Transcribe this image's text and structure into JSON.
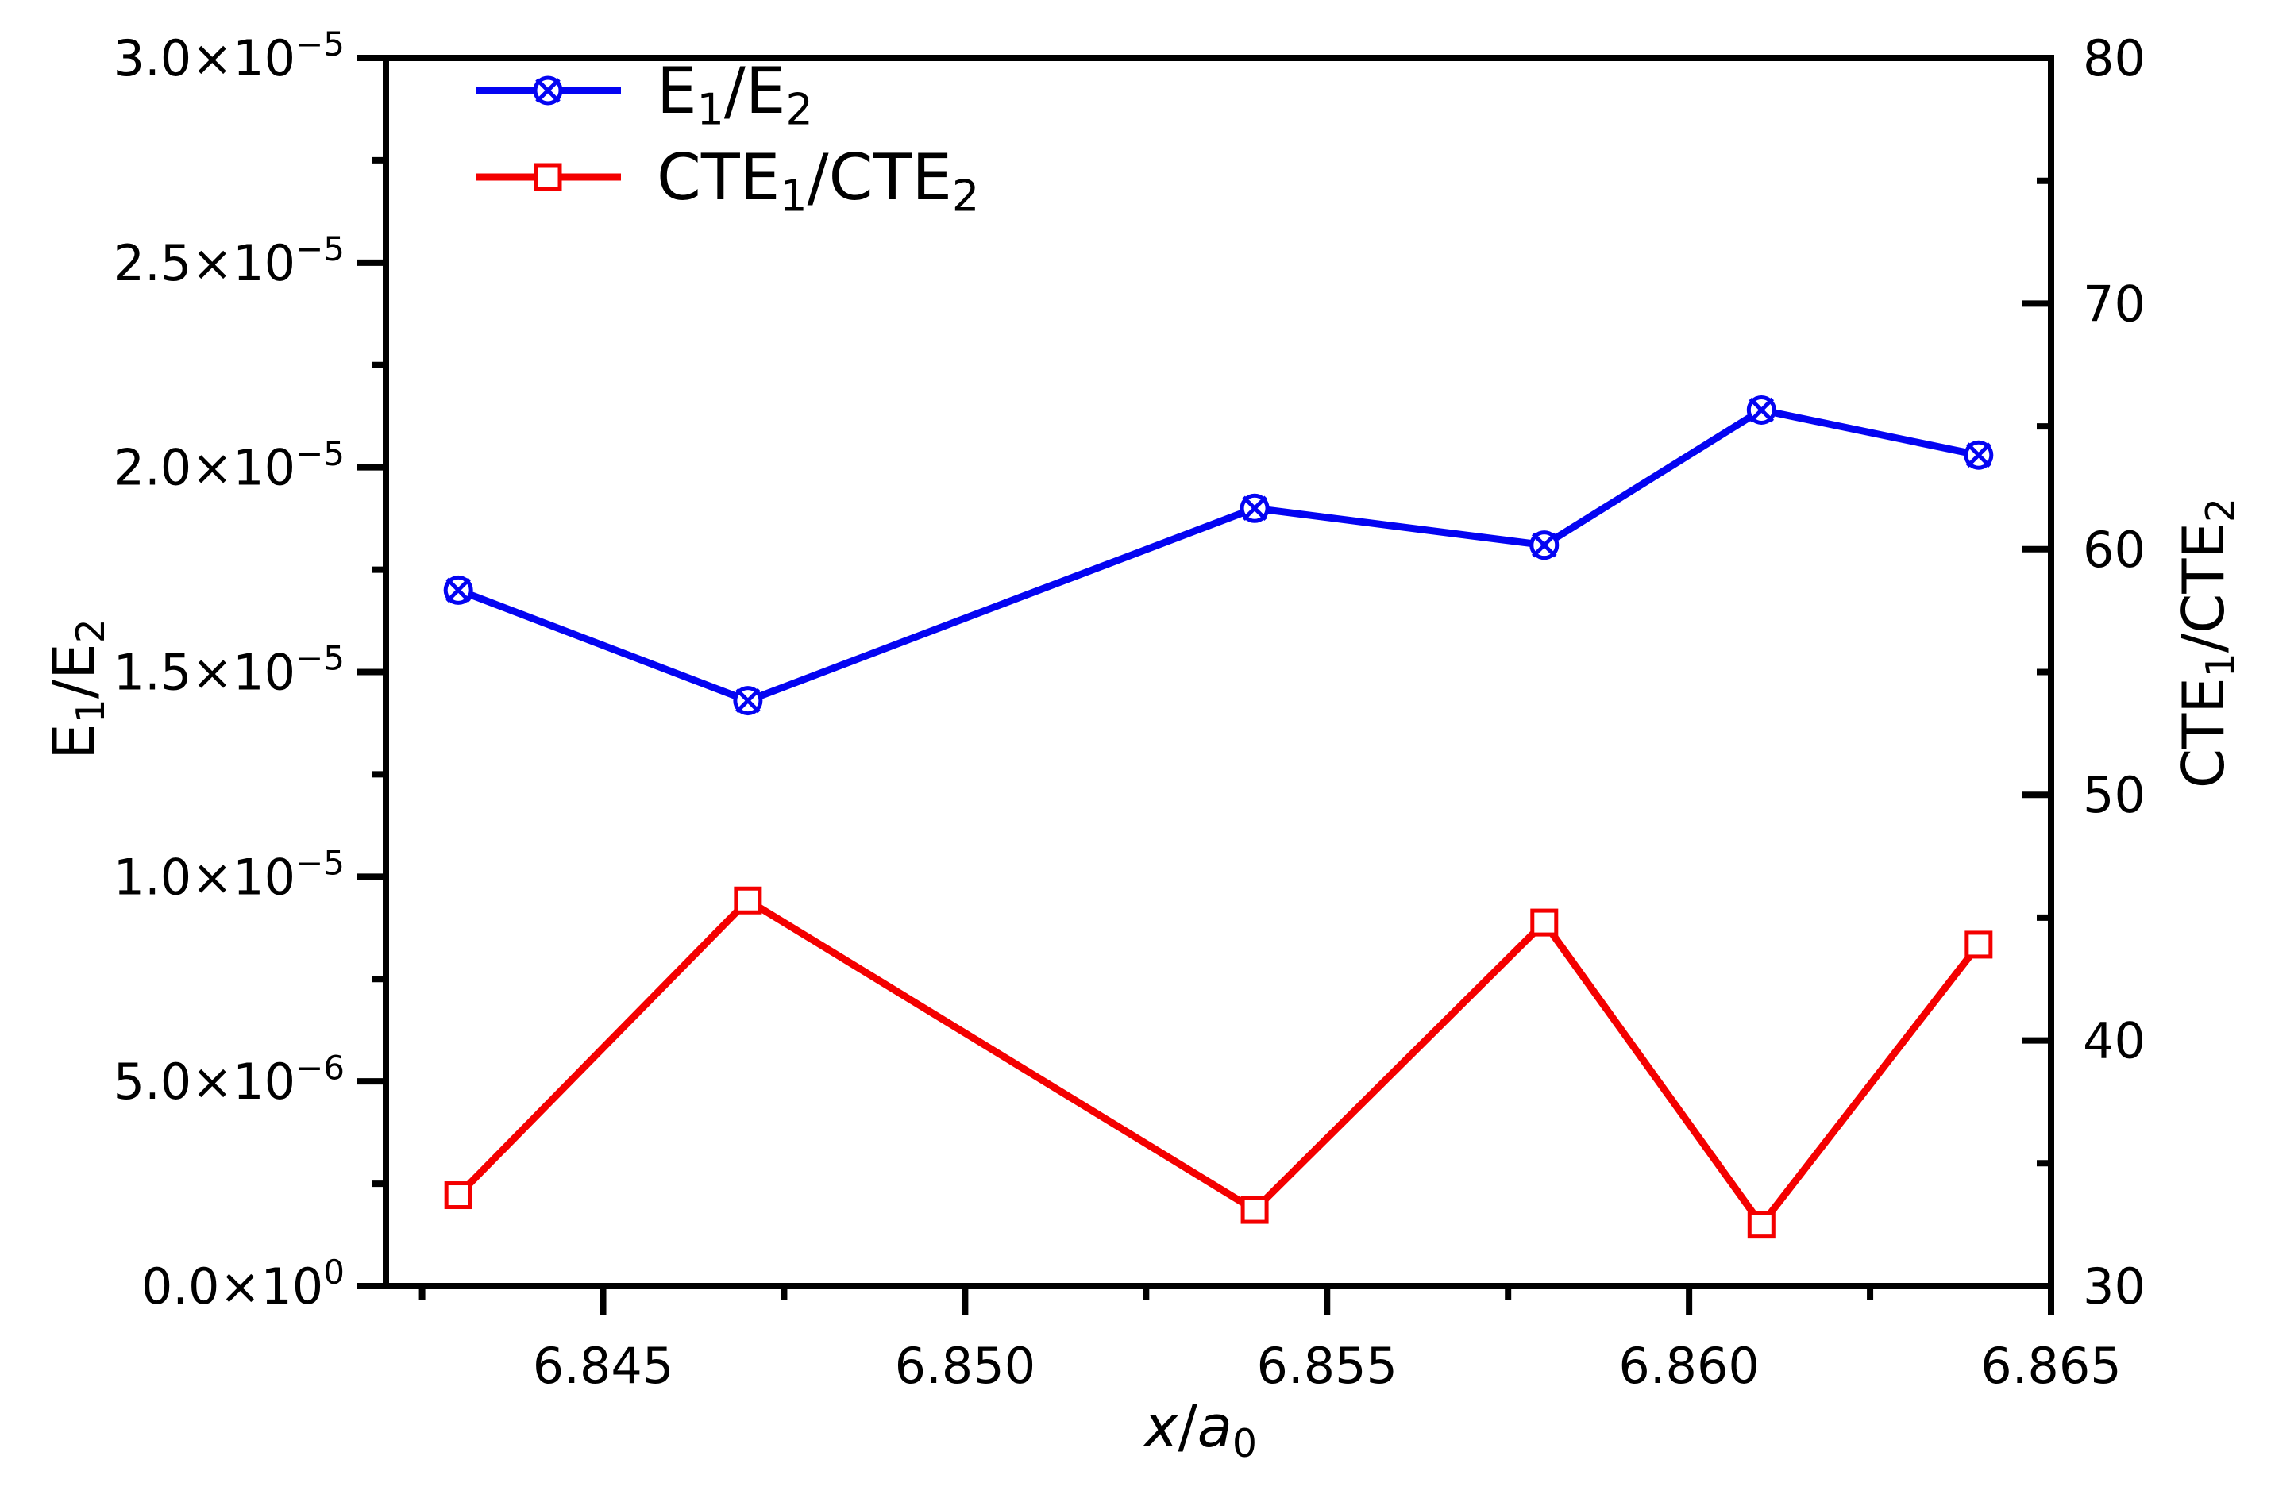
{
  "figure": {
    "background": "#ffffff",
    "axis_color": "#000000"
  },
  "chart_data": {
    "type": "line",
    "title": "",
    "x": [
      6.843,
      6.847,
      6.854,
      6.858,
      6.861,
      6.864
    ],
    "series": [
      {
        "name": "E1/E2",
        "label_rich": [
          {
            "t": "E"
          },
          {
            "t": "1",
            "sub": true
          },
          {
            "t": "/E"
          },
          {
            "t": "2",
            "sub": true
          }
        ],
        "axis": "left",
        "color": "#0404f2",
        "marker": "circle-x",
        "line_width": 9,
        "values": [
          1.7e-05,
          1.43e-05,
          1.9e-05,
          1.81e-05,
          2.14e-05,
          2.03e-05
        ]
      },
      {
        "name": "CTE1/CTE2",
        "label_rich": [
          {
            "t": "CTE"
          },
          {
            "t": "1",
            "sub": true
          },
          {
            "t": "/CTE"
          },
          {
            "t": "2",
            "sub": true
          }
        ],
        "axis": "right",
        "color": "#f40000",
        "marker": "open-square",
        "line_width": 9,
        "values": [
          33.7,
          45.7,
          33.1,
          44.8,
          32.5,
          43.9
        ]
      }
    ],
    "x_axis": {
      "title_rich": [
        {
          "t": "x",
          "italic": true
        },
        {
          "t": "/"
        },
        {
          "t": "a",
          "italic": true
        },
        {
          "t": "0",
          "sub": true
        }
      ],
      "min": 6.842,
      "max": 6.865,
      "major_ticks": [
        6.845,
        6.85,
        6.855,
        6.86,
        6.865
      ],
      "tick_labels": [
        "6.845",
        "6.850",
        "6.855",
        "6.860",
        "6.865"
      ],
      "minor_ticks": [
        6.8425,
        6.8475,
        6.8525,
        6.8575,
        6.8625
      ]
    },
    "y_left": {
      "title_rich": [
        {
          "t": "E"
        },
        {
          "t": "1",
          "sub": true
        },
        {
          "t": "/E"
        },
        {
          "t": "2",
          "sub": true
        }
      ],
      "min": 0,
      "max": 3e-05,
      "major_ticks": [
        {
          "v": 3e-05,
          "base": "3.0×10",
          "exp": "−5"
        },
        {
          "v": 2.5e-05,
          "base": "2.5×10",
          "exp": "−5"
        },
        {
          "v": 2e-05,
          "base": "2.0×10",
          "exp": "−5"
        },
        {
          "v": 1.5e-05,
          "base": "1.5×10",
          "exp": "−5"
        },
        {
          "v": 1e-05,
          "base": "1.0×10",
          "exp": "−5"
        },
        {
          "v": 5e-06,
          "base": "5.0×10",
          "exp": "−6"
        },
        {
          "v": 0.0,
          "base": "0.0×10",
          "exp": "0"
        }
      ],
      "minor_ticks": [
        2.75e-05,
        2.25e-05,
        1.75e-05,
        1.25e-05,
        7.5e-06,
        2.5e-06
      ]
    },
    "y_right": {
      "title_rich": [
        {
          "t": "CTE"
        },
        {
          "t": "1",
          "sub": true
        },
        {
          "t": "/CTE"
        },
        {
          "t": "2",
          "sub": true
        }
      ],
      "min": 30,
      "max": 80,
      "major_ticks": [
        {
          "v": 80,
          "label": "80"
        },
        {
          "v": 70,
          "label": "70"
        },
        {
          "v": 60,
          "label": "60"
        },
        {
          "v": 50,
          "label": "50"
        },
        {
          "v": 40,
          "label": "40"
        },
        {
          "v": 30,
          "label": "30"
        }
      ],
      "minor_ticks": [
        75,
        65,
        55,
        45,
        35
      ]
    },
    "legend": {
      "position": "top-left"
    },
    "grid": false,
    "axis_ranges": {
      "x": [
        6.842,
        6.865
      ],
      "y_left": [
        0,
        3e-05
      ],
      "y_right": [
        30,
        80
      ]
    }
  }
}
